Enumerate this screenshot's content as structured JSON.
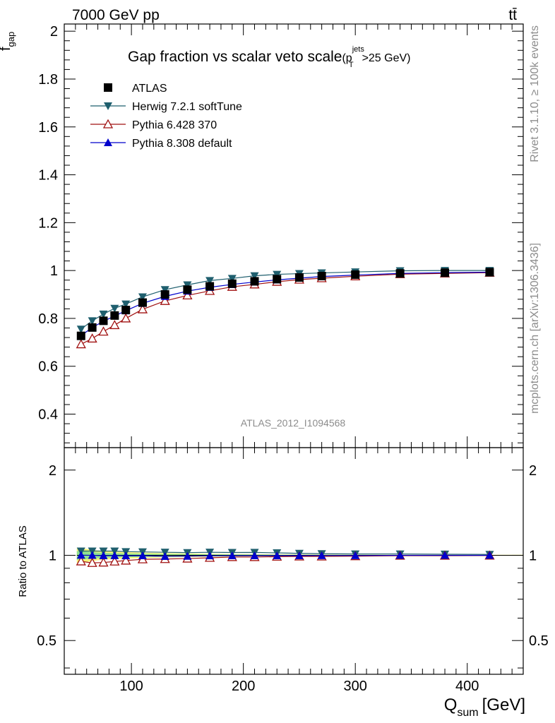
{
  "header": {
    "energy_label": "7000 GeV pp",
    "process_label": "tt̄"
  },
  "side": {
    "rivet_label": "Rivet 3.1.10, ≥ 100k events",
    "mcplots_label": "mcplots.cern.ch [arXiv:1306.3436]"
  },
  "chart_data": {
    "type": "line",
    "title": "Gap fraction vs scalar veto scale",
    "title_suffix": "(p",
    "title_sup": "jets",
    "title_sub": "T",
    "title_cut": ">25 GeV)",
    "analysis_label": "ATLAS_2012_I1094568",
    "ylabel_main": "f",
    "ylabel_main_sub": "gap",
    "ylabel_ratio": "Ratio to ATLAS",
    "xlabel_main": "Q",
    "xlabel_sub": "sum",
    "xlabel_unit": "[GeV]",
    "xlim": [
      40,
      450
    ],
    "ylim_main": [
      0.26,
      2.03
    ],
    "ylim_ratio": [
      0.38,
      2.4
    ],
    "yticks_main": [
      "0.4",
      "0.6",
      "0.8",
      "1",
      "1.2",
      "1.4",
      "1.6",
      "1.8",
      "2"
    ],
    "yticks_ratio": [
      "0.5",
      "1",
      "2"
    ],
    "xticks": [
      "100",
      "200",
      "300",
      "400"
    ],
    "legend_position": "top-left",
    "x": [
      55,
      65,
      75,
      85,
      95,
      110,
      130,
      150,
      170,
      190,
      210,
      230,
      250,
      270,
      300,
      340,
      380,
      420
    ],
    "series": [
      {
        "name": "ATLAS",
        "color": "#000000",
        "marker": "square",
        "values": [
          0.727,
          0.762,
          0.79,
          0.812,
          0.835,
          0.866,
          0.9,
          0.92,
          0.934,
          0.945,
          0.955,
          0.964,
          0.971,
          0.977,
          0.983,
          0.988,
          0.991,
          0.993
        ]
      },
      {
        "name": "Herwig 7.2.1 softTune",
        "color": "#1f5f6e",
        "marker": "triangle-down",
        "values": [
          0.755,
          0.79,
          0.818,
          0.842,
          0.86,
          0.89,
          0.92,
          0.94,
          0.958,
          0.967,
          0.978,
          0.984,
          0.987,
          0.99,
          0.994,
          0.999,
          1.0,
          1.0
        ]
      },
      {
        "name": "Pythia 6.428 370",
        "color": "#a01010",
        "marker": "triangle-open",
        "values": [
          0.692,
          0.716,
          0.745,
          0.772,
          0.8,
          0.838,
          0.873,
          0.896,
          0.915,
          0.932,
          0.942,
          0.953,
          0.962,
          0.968,
          0.976,
          0.985,
          0.988,
          0.991
        ]
      },
      {
        "name": "Pythia 8.308 default",
        "color": "#0000cc",
        "marker": "triangle-up",
        "values": [
          0.728,
          0.762,
          0.788,
          0.81,
          0.832,
          0.863,
          0.892,
          0.914,
          0.93,
          0.942,
          0.952,
          0.961,
          0.968,
          0.975,
          0.981,
          0.988,
          0.991,
          0.993
        ]
      }
    ],
    "ratio_series": [
      {
        "name": "Herwig 7.2.1 softTune",
        "values": [
          1.035,
          1.035,
          1.035,
          1.035,
          1.03,
          1.028,
          1.025,
          1.022,
          1.025,
          1.023,
          1.024,
          1.02,
          1.016,
          1.013,
          1.011,
          1.011,
          1.009,
          1.007
        ]
      },
      {
        "name": "Pythia 6.428 370",
        "values": [
          0.952,
          0.94,
          0.943,
          0.951,
          0.958,
          0.968,
          0.97,
          0.974,
          0.98,
          0.986,
          0.986,
          0.989,
          0.991,
          0.991,
          0.993,
          0.997,
          0.997,
          0.998
        ]
      },
      {
        "name": "Pythia 8.308 default",
        "values": [
          1.001,
          1.0,
          0.997,
          0.998,
          0.996,
          0.997,
          0.991,
          0.993,
          0.996,
          0.997,
          0.997,
          0.997,
          0.997,
          0.998,
          0.998,
          1.0,
          1.0,
          1.0
        ]
      }
    ],
    "ratio_band": {
      "color_outer": "#f5f57a",
      "color_inner": "#8fe08f",
      "half_width_outer": [
        0.06,
        0.045,
        0.035,
        0.03,
        0.026,
        0.022,
        0.018,
        0.015,
        0.012,
        0.01,
        0.009,
        0.008,
        0.007,
        0.006,
        0.005,
        0.004,
        0.004,
        0.004
      ],
      "half_width_inner": [
        0.035,
        0.026,
        0.02,
        0.017,
        0.015,
        0.013,
        0.011,
        0.009,
        0.008,
        0.007,
        0.006,
        0.005,
        0.005,
        0.004,
        0.004,
        0.003,
        0.003,
        0.003
      ]
    }
  }
}
